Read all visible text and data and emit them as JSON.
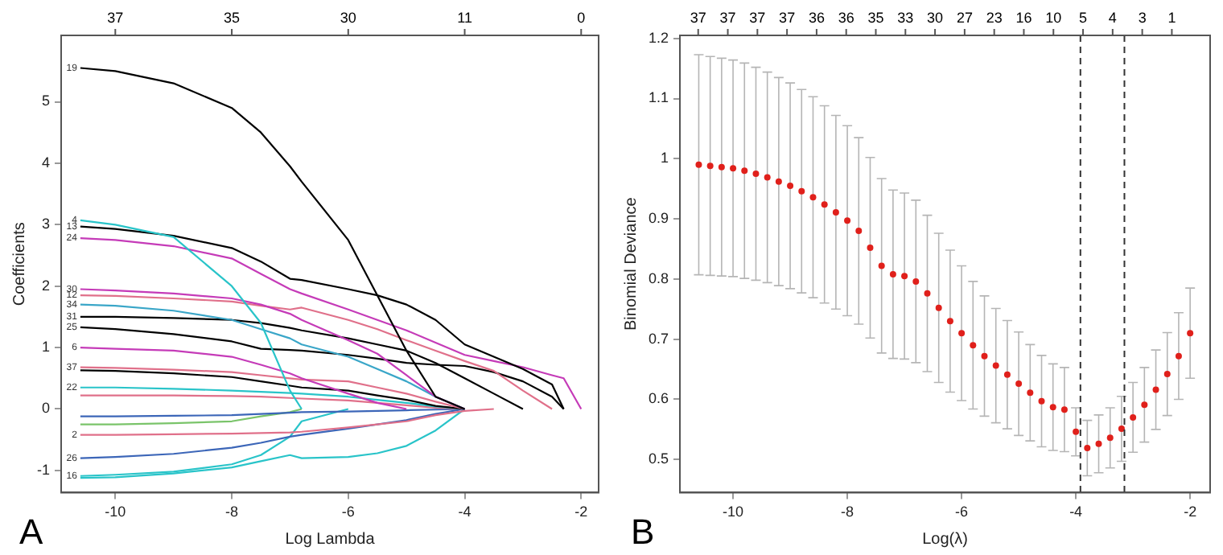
{
  "chart_data": [
    {
      "type": "line",
      "xlabel": "Log Lambda",
      "ylabel": "Coefficients",
      "annotations": [
        "A",
        "37",
        "35",
        "30",
        "11",
        "0"
      ],
      "xlim": [
        -10.93,
        -1.7
      ],
      "xticks": [
        -10,
        -8,
        -6,
        -4,
        -2
      ],
      "ylim": [
        -1.36,
        6.08
      ],
      "yticks": [
        -1,
        0,
        1,
        2,
        3,
        4,
        5
      ],
      "grid": false,
      "legend": false,
      "marker": "none",
      "line_style": "solid",
      "x": [
        -10.6,
        -10,
        -9,
        -8,
        -7.5,
        -7,
        -6.8,
        -6,
        -5.5,
        -5,
        -4.5,
        -4,
        -3.5,
        -3,
        -2.5,
        -2.3,
        -2
      ],
      "series": [
        {
          "name": "19",
          "color": "#000000",
          "values": [
            5.55,
            5.5,
            5.3,
            4.9,
            4.5,
            3.95,
            3.7,
            2.75,
            1.85,
            0.95,
            0.2,
            0,
            null,
            null,
            null,
            null,
            null
          ]
        },
        {
          "name": "4",
          "color": "#29c4c9",
          "values": [
            3.07,
            3.0,
            2.8,
            2.0,
            1.4,
            0.3,
            0,
            null,
            null,
            null,
            null,
            null,
            null,
            null,
            null,
            null,
            null
          ]
        },
        {
          "name": "13",
          "color": "#000000",
          "values": [
            2.97,
            2.93,
            2.82,
            2.62,
            2.4,
            2.12,
            2.1,
            1.95,
            1.85,
            1.7,
            1.45,
            1.05,
            0.85,
            0.65,
            0.4,
            0,
            null
          ]
        },
        {
          "name": "24",
          "color": "#c53bb8",
          "values": [
            2.78,
            2.75,
            2.65,
            2.45,
            2.2,
            1.95,
            1.88,
            1.62,
            1.45,
            1.28,
            1.08,
            0.88,
            0.78,
            0.68,
            0.55,
            0.5,
            0
          ]
        },
        {
          "name": "30",
          "color": "#c53bb8",
          "values": [
            1.95,
            1.93,
            1.88,
            1.8,
            1.7,
            1.55,
            1.45,
            1.12,
            0.9,
            0.55,
            0.2,
            0,
            null,
            null,
            null,
            null,
            null
          ]
        },
        {
          "name": "12",
          "color": "#e0708a",
          "values": [
            1.85,
            1.84,
            1.8,
            1.75,
            1.68,
            1.62,
            1.65,
            1.45,
            1.3,
            1.12,
            0.95,
            0.78,
            0.62,
            0.3,
            0,
            null,
            null
          ]
        },
        {
          "name": "34",
          "color": "#3aa6c8",
          "values": [
            1.7,
            1.68,
            1.6,
            1.45,
            1.3,
            1.15,
            1.05,
            0.85,
            0.65,
            0.45,
            0.2,
            0,
            null,
            null,
            null,
            null,
            null
          ]
        },
        {
          "name": "31",
          "color": "#000000",
          "values": [
            1.5,
            1.5,
            1.48,
            1.45,
            1.4,
            1.32,
            1.28,
            1.15,
            1.05,
            0.95,
            0.75,
            0.5,
            0.25,
            0,
            null,
            null,
            null
          ]
        },
        {
          "name": "25",
          "color": "#000000",
          "values": [
            1.33,
            1.3,
            1.22,
            1.1,
            0.98,
            0.96,
            0.95,
            0.88,
            0.82,
            0.75,
            0.72,
            0.7,
            0.6,
            0.45,
            0.2,
            0,
            null
          ]
        },
        {
          "name": "6",
          "color": "#c53bb8",
          "values": [
            1.0,
            0.98,
            0.95,
            0.85,
            0.72,
            0.58,
            0.5,
            0.25,
            0.1,
            0,
            null,
            null,
            null,
            null,
            null,
            null,
            null
          ]
        },
        {
          "name": "37",
          "color": "#e0708a",
          "values": [
            0.68,
            0.67,
            0.64,
            0.6,
            0.55,
            0.5,
            0.48,
            0.45,
            0.35,
            0.25,
            0.12,
            0,
            null,
            null,
            null,
            null,
            null
          ]
        },
        {
          "color": "#000000",
          "values": [
            0.63,
            0.62,
            0.58,
            0.52,
            0.45,
            0.38,
            0.35,
            0.3,
            0.22,
            0.15,
            0.05,
            0,
            null,
            null,
            null,
            null,
            null
          ]
        },
        {
          "name": "22",
          "color": "#29c4c9",
          "values": [
            0.35,
            0.35,
            0.33,
            0.3,
            0.28,
            0.26,
            0.25,
            0.2,
            0.15,
            0.1,
            0.04,
            0,
            null,
            null,
            null,
            null,
            null
          ]
        },
        {
          "color": "#e0708a",
          "values": [
            0.22,
            0.22,
            0.22,
            0.21,
            0.2,
            0.18,
            0.17,
            0.14,
            0.1,
            0.06,
            0.02,
            0,
            null,
            null,
            null,
            null,
            null
          ]
        },
        {
          "color": "#3c66b8",
          "values": [
            -0.12,
            -0.12,
            -0.11,
            -0.1,
            -0.08,
            -0.06,
            -0.05,
            -0.04,
            -0.03,
            -0.02,
            -0.01,
            0,
            null,
            null,
            null,
            null,
            null
          ]
        },
        {
          "color": "#7ac46a",
          "values": [
            -0.25,
            -0.25,
            -0.23,
            -0.2,
            -0.12,
            -0.05,
            0,
            null,
            null,
            null,
            null,
            null,
            null,
            null,
            null,
            null,
            null
          ]
        },
        {
          "name": "2",
          "color": "#e0708a",
          "values": [
            -0.42,
            -0.42,
            -0.41,
            -0.4,
            -0.39,
            -0.38,
            -0.37,
            -0.3,
            -0.25,
            -0.2,
            -0.1,
            -0.03,
            0,
            null,
            null,
            null,
            null
          ]
        },
        {
          "name": "26",
          "color": "#3c66b8",
          "values": [
            -0.8,
            -0.78,
            -0.73,
            -0.63,
            -0.55,
            -0.45,
            -0.42,
            -0.32,
            -0.25,
            -0.18,
            -0.08,
            0,
            null,
            null,
            null,
            null,
            null
          ]
        },
        {
          "name": "16",
          "color": "#29c4c9",
          "values": [
            -1.09,
            -1.07,
            -1.02,
            -0.9,
            -0.75,
            -0.45,
            -0.2,
            0,
            null,
            null,
            null,
            null,
            null,
            null,
            null,
            null,
            null
          ]
        },
        {
          "color": "#29c4c9",
          "values": [
            -1.12,
            -1.11,
            -1.05,
            -0.95,
            -0.85,
            -0.75,
            -0.8,
            -0.78,
            -0.72,
            -0.6,
            -0.35,
            0,
            null,
            null,
            null,
            null,
            null
          ]
        }
      ]
    },
    {
      "type": "scatter",
      "xlabel": "Log(λ)",
      "ylabel": "Binomial Deviance",
      "annotations": [
        "B",
        "37",
        "37",
        "37",
        "37",
        "36",
        "36",
        "35",
        "33",
        "30",
        "27",
        "23",
        "16",
        "10",
        "5",
        "4",
        "3",
        "1"
      ],
      "xlim": [
        -10.93,
        -1.65
      ],
      "xticks": [
        -10,
        -8,
        -6,
        -4,
        -2
      ],
      "ylim": [
        0.445,
        1.205
      ],
      "yticks": [
        0.5,
        0.6,
        0.7,
        0.8,
        0.9,
        1.0,
        1.1,
        1.2
      ],
      "grid": false,
      "legend": false,
      "marker": "circle",
      "ref_lines": [
        {
          "axis": "x",
          "value": -3.92,
          "line_style": "dashed",
          "color": "#333333"
        },
        {
          "axis": "x",
          "value": -3.15,
          "line_style": "dashed",
          "color": "#333333"
        }
      ],
      "x": [
        -10.6,
        -10.4,
        -10.2,
        -10.0,
        -9.8,
        -9.6,
        -9.4,
        -9.2,
        -9.0,
        -8.8,
        -8.6,
        -8.4,
        -8.2,
        -8.0,
        -7.8,
        -7.6,
        -7.4,
        -7.2,
        -7.0,
        -6.8,
        -6.6,
        -6.4,
        -6.2,
        -6.0,
        -5.8,
        -5.6,
        -5.4,
        -5.2,
        -5.0,
        -4.8,
        -4.6,
        -4.4,
        -4.2,
        -4.0,
        -3.8,
        -3.6,
        -3.4,
        -3.2,
        -3.0,
        -2.8,
        -2.6,
        -2.4,
        -2.2,
        -2.0
      ],
      "series": [
        {
          "color": "#e0201b",
          "values": [
            0.99,
            0.988,
            0.986,
            0.984,
            0.98,
            0.975,
            0.969,
            0.962,
            0.955,
            0.946,
            0.936,
            0.924,
            0.911,
            0.897,
            0.88,
            0.852,
            0.822,
            0.808,
            0.805,
            0.796,
            0.776,
            0.752,
            0.73,
            0.71,
            0.69,
            0.672,
            0.656,
            0.641,
            0.626,
            0.611,
            0.597,
            0.587,
            0.583,
            0.546,
            0.519,
            0.526,
            0.536,
            0.551,
            0.57,
            0.591,
            0.616,
            0.642,
            0.672,
            0.71
          ],
          "errors": [
            0.183,
            0.182,
            0.181,
            0.18,
            0.179,
            0.177,
            0.175,
            0.173,
            0.171,
            0.169,
            0.167,
            0.164,
            0.161,
            0.158,
            0.155,
            0.15,
            0.145,
            0.14,
            0.138,
            0.135,
            0.13,
            0.124,
            0.118,
            0.112,
            0.106,
            0.1,
            0.095,
            0.09,
            0.086,
            0.08,
            0.076,
            0.072,
            0.07,
            0.04,
            0.046,
            0.048,
            0.05,
            0.054,
            0.058,
            0.062,
            0.066,
            0.069,
            0.072,
            0.075
          ]
        }
      ]
    }
  ]
}
